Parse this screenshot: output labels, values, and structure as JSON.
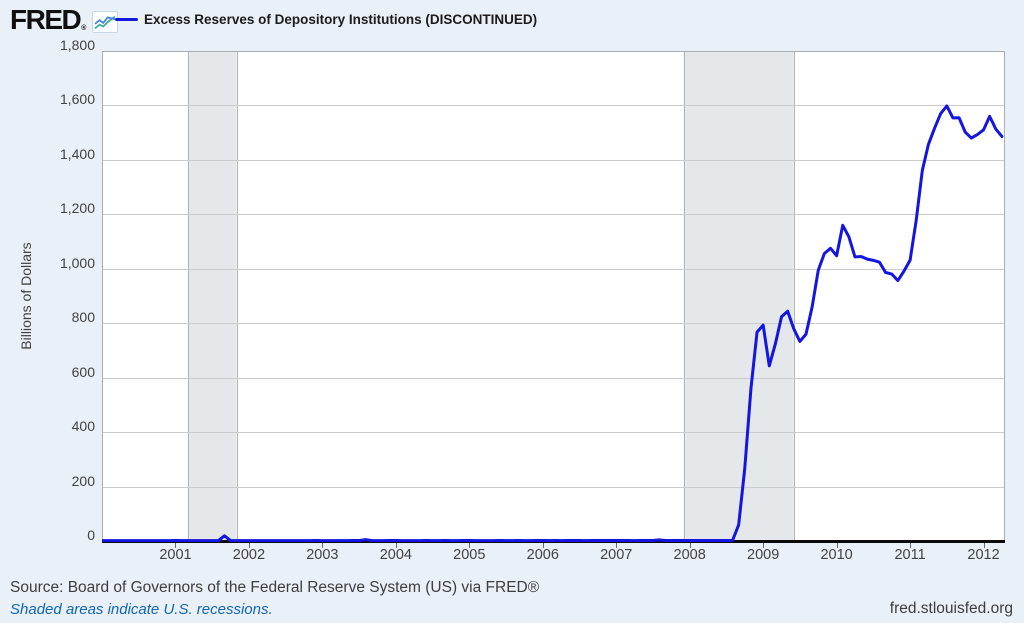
{
  "page": {
    "background": "#e9f0f8"
  },
  "header": {
    "logo_text": "FRED",
    "logo_reg_mark": "®",
    "legend": {
      "label": "Excess Reserves of Depository Institutions (DISCONTINUED)",
      "swatch_color": "#1515e0"
    }
  },
  "chart_data": {
    "type": "line",
    "title": "Excess Reserves of Depository Institutions (DISCONTINUED)",
    "ylabel": "Billions of Dollars",
    "xlabel": "",
    "ylim": [
      0,
      1800
    ],
    "xlim": [
      2000.0,
      2012.292
    ],
    "grid": "horizontal",
    "legend_position": "top-left",
    "line_color": "#1515e0",
    "plot_background": "#ffffff",
    "grid_color": "#cccccc",
    "border_color": "#a8adb1",
    "axis_color": "#0a0a0a",
    "recession_band_color": "#e4e8ea",
    "recession_band_edge_color": "#b2b6b9",
    "ytick_values": [
      0,
      200,
      400,
      600,
      800,
      1000,
      1200,
      1400,
      1600,
      1800
    ],
    "ytick_labels": [
      "0",
      "200",
      "400",
      "600",
      "800",
      "1,000",
      "1,200",
      "1,400",
      "1,600",
      "1,800"
    ],
    "xtick_values": [
      2001,
      2002,
      2003,
      2004,
      2005,
      2006,
      2007,
      2008,
      2009,
      2010,
      2011,
      2012
    ],
    "xtick_labels": [
      "2001",
      "2002",
      "2003",
      "2004",
      "2005",
      "2006",
      "2007",
      "2008",
      "2009",
      "2010",
      "2011",
      "2012"
    ],
    "recession_bands": [
      {
        "start_year": 2001.167,
        "end_year": 2001.833
      },
      {
        "start_year": 2007.917,
        "end_year": 2009.417
      }
    ],
    "series": [
      {
        "name": "Excess Reserves of Depository Institutions (DISCONTINUED)",
        "units": "Billions of Dollars",
        "frequency": "monthly",
        "start_date": "2000-01",
        "end_date": "2012-04",
        "values": [
          1.3,
          1.2,
          1.3,
          1.2,
          1.3,
          1.4,
          1.3,
          1.2,
          1.4,
          1.3,
          1.4,
          1.5,
          1.6,
          1.4,
          1.3,
          1.2,
          1.4,
          1.5,
          1.4,
          1.3,
          19.0,
          1.8,
          1.5,
          1.4,
          1.5,
          1.3,
          1.4,
          1.3,
          1.2,
          1.4,
          1.3,
          1.4,
          1.5,
          1.3,
          1.4,
          1.6,
          1.5,
          1.4,
          1.5,
          1.4,
          1.5,
          1.6,
          1.6,
          5.0,
          1.8,
          1.5,
          1.4,
          1.6,
          1.6,
          1.4,
          1.5,
          1.4,
          1.5,
          1.6,
          1.5,
          1.4,
          1.6,
          1.5,
          1.4,
          1.7,
          1.6,
          1.5,
          1.5,
          1.4,
          1.5,
          1.6,
          1.5,
          1.4,
          1.6,
          1.5,
          1.5,
          1.7,
          1.7,
          1.5,
          1.6,
          1.5,
          1.6,
          1.7,
          1.6,
          1.5,
          1.7,
          1.6,
          1.6,
          1.8,
          1.7,
          1.6,
          1.6,
          1.5,
          1.7,
          1.8,
          1.7,
          4.2,
          1.9,
          1.7,
          1.6,
          1.8,
          1.8,
          1.7,
          1.9,
          1.8,
          1.9,
          2.0,
          1.9,
          1.9,
          59.5,
          267.9,
          559.0,
          767.3,
          793.1,
          643.5,
          724.8,
          823.8,
          844.0,
          779.6,
          733.2,
          760.0,
          860.1,
          994.7,
          1056.1,
          1075.2,
          1048.2,
          1159.7,
          1117.3,
          1043.5,
          1045.3,
          1035.4,
          1030.9,
          1024.1,
          986.3,
          980.7,
          956.6,
          991.2,
          1031.4,
          1178.2,
          1361.5,
          1457.3,
          1516.4,
          1570.3,
          1598.3,
          1554.2,
          1554.7,
          1502.4,
          1480.1,
          1493.0,
          1510.3,
          1559.9,
          1513.4,
          1486.2
        ]
      }
    ]
  },
  "footer": {
    "source_text": "Source: Board of Governors of the Federal Reserve System (US) via FRED®",
    "recession_note": "Shaded areas indicate U.S. recessions.",
    "recession_note_color": "#1266b0",
    "site_link": "fred.stlouisfed.org"
  }
}
